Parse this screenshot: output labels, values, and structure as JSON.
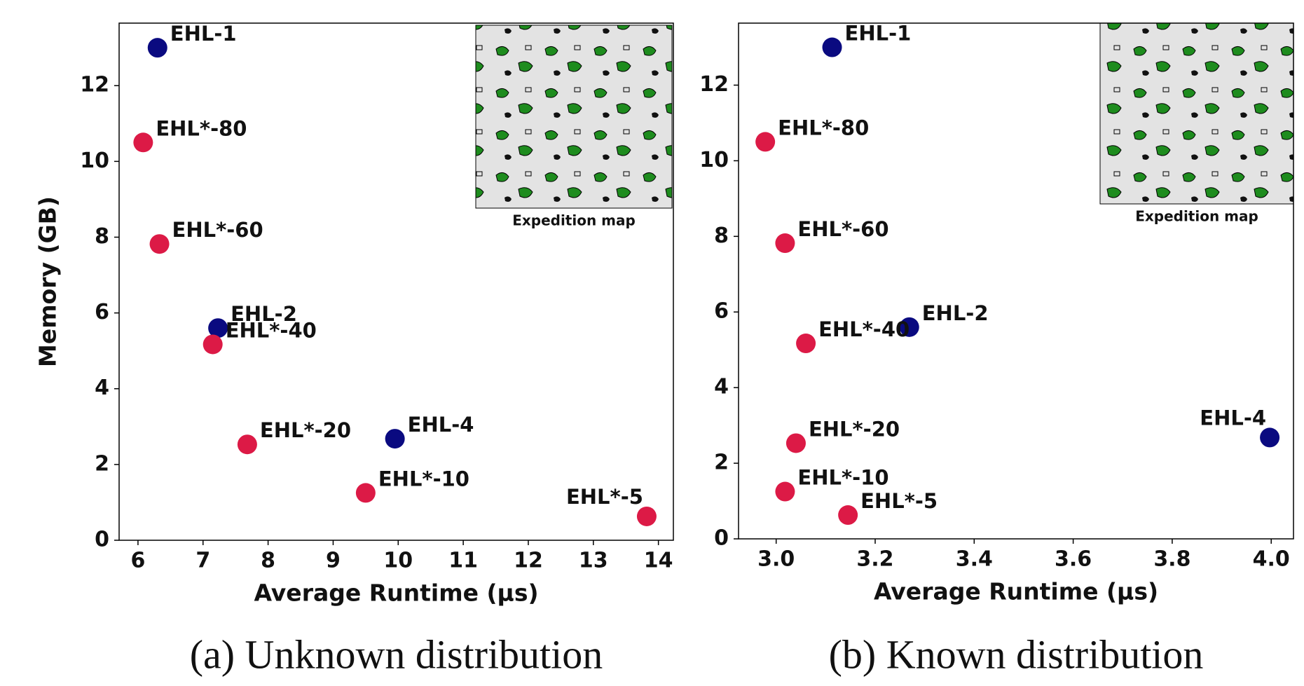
{
  "chart_data": [
    {
      "type": "scatter",
      "caption": "(a) Unknown distribution",
      "xlabel": "Average Runtime (µs)",
      "ylabel": "Memory (GB)",
      "inset_label": "Expedition map",
      "labels": [
        "EHL-1",
        "EHL*-80",
        "EHL*-60",
        "EHL-2",
        "EHL*-40",
        "EHL*-20",
        "EHL-4",
        "EHL*-10",
        "EHL*-5"
      ],
      "x": [
        6.3,
        6.08,
        6.33,
        7.23,
        7.15,
        7.68,
        9.95,
        9.5,
        13.82
      ],
      "values": [
        13,
        10.5,
        7.82,
        5.6,
        5.17,
        2.53,
        2.68,
        1.25,
        0.63
      ],
      "colors": [
        "#0a0a80",
        "#dc1a46",
        "#dc1a46",
        "#0a0a80",
        "#dc1a46",
        "#dc1a46",
        "#0a0a80",
        "#dc1a46",
        "#dc1a46"
      ],
      "xlim": [
        5.71,
        14.23
      ],
      "ylim": [
        0,
        13.65
      ],
      "xticks": [
        6,
        7,
        8,
        9,
        10,
        11,
        12,
        13,
        14
      ],
      "yticks": [
        0,
        2,
        4,
        6,
        8,
        10,
        12
      ]
    },
    {
      "type": "scatter",
      "caption": "(b) Known distribution",
      "xlabel": "Average Runtime (µs)",
      "inset_label": "Expedition map",
      "labels": [
        "EHL-1",
        "EHL*-80",
        "EHL*-60",
        "EHL-2",
        "EHL*-40",
        "EHL-4",
        "EHL*-20",
        "EHL*-10",
        "EHL*-5"
      ],
      "x": [
        3.113,
        2.978,
        3.018,
        3.269,
        3.06,
        3.997,
        3.04,
        3.018,
        3.145
      ],
      "values": [
        13,
        10.5,
        7.82,
        5.6,
        5.17,
        2.68,
        2.53,
        1.25,
        0.63
      ],
      "colors": [
        "#0a0a80",
        "#dc1a46",
        "#dc1a46",
        "#0a0a80",
        "#dc1a46",
        "#0a0a80",
        "#dc1a46",
        "#dc1a46",
        "#dc1a46"
      ],
      "xlim": [
        2.924,
        4.045
      ],
      "ylim": [
        0,
        13.64
      ],
      "xticks": [
        {
          "value": 3,
          "label": "3.0"
        },
        3.2,
        3.4,
        3.6,
        3.8,
        {
          "value": 4,
          "label": "4.0"
        }
      ],
      "yticks": [
        0,
        2,
        4,
        6,
        8,
        10,
        12
      ]
    }
  ]
}
